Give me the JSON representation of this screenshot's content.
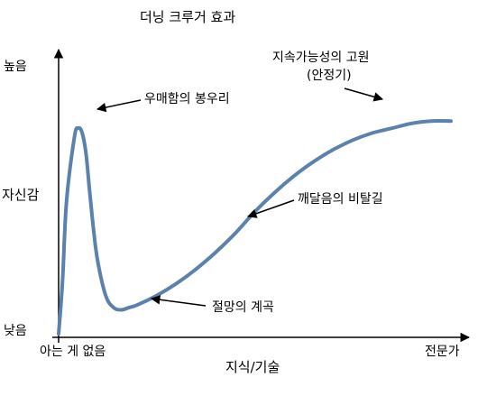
{
  "chart_data": {
    "type": "line",
    "title": "더닝 크루거 효과",
    "xlabel": "지식/기술",
    "ylabel": "자신감",
    "x_tick_labels": {
      "start": "아는 게 없음",
      "end": "전문가"
    },
    "y_tick_labels": {
      "low": "낮음",
      "high": "높음"
    },
    "xlim": [
      0,
      100
    ],
    "ylim": [
      0,
      100
    ],
    "grid": false,
    "series": [
      {
        "color": "#5a82ac",
        "x": [
          0,
          1,
          2,
          4,
          5,
          6,
          7,
          8,
          9,
          10,
          12,
          14,
          16,
          18,
          20,
          25,
          30,
          35,
          40,
          45,
          50,
          55,
          60,
          65,
          70,
          75,
          80,
          85,
          90,
          95,
          100
        ],
        "y": [
          0,
          22,
          55,
          82,
          86,
          84,
          75,
          58,
          42,
          30,
          16,
          11,
          10,
          11,
          12,
          16,
          21,
          27,
          34,
          42,
          51,
          59,
          66,
          72,
          77,
          81,
          84,
          86,
          88,
          89,
          89
        ]
      }
    ],
    "annotations": [
      {
        "text": "우매함의 봉우리",
        "x": 5,
        "y": 86
      },
      {
        "text": "절망의 계곡",
        "x": 15,
        "y": 10
      },
      {
        "text": "깨달음의 비탈길",
        "x": 50,
        "y": 51
      },
      {
        "text": "지속가능성의 고원",
        "subtext": "(안정기)",
        "x": 82,
        "y": 85
      }
    ]
  }
}
